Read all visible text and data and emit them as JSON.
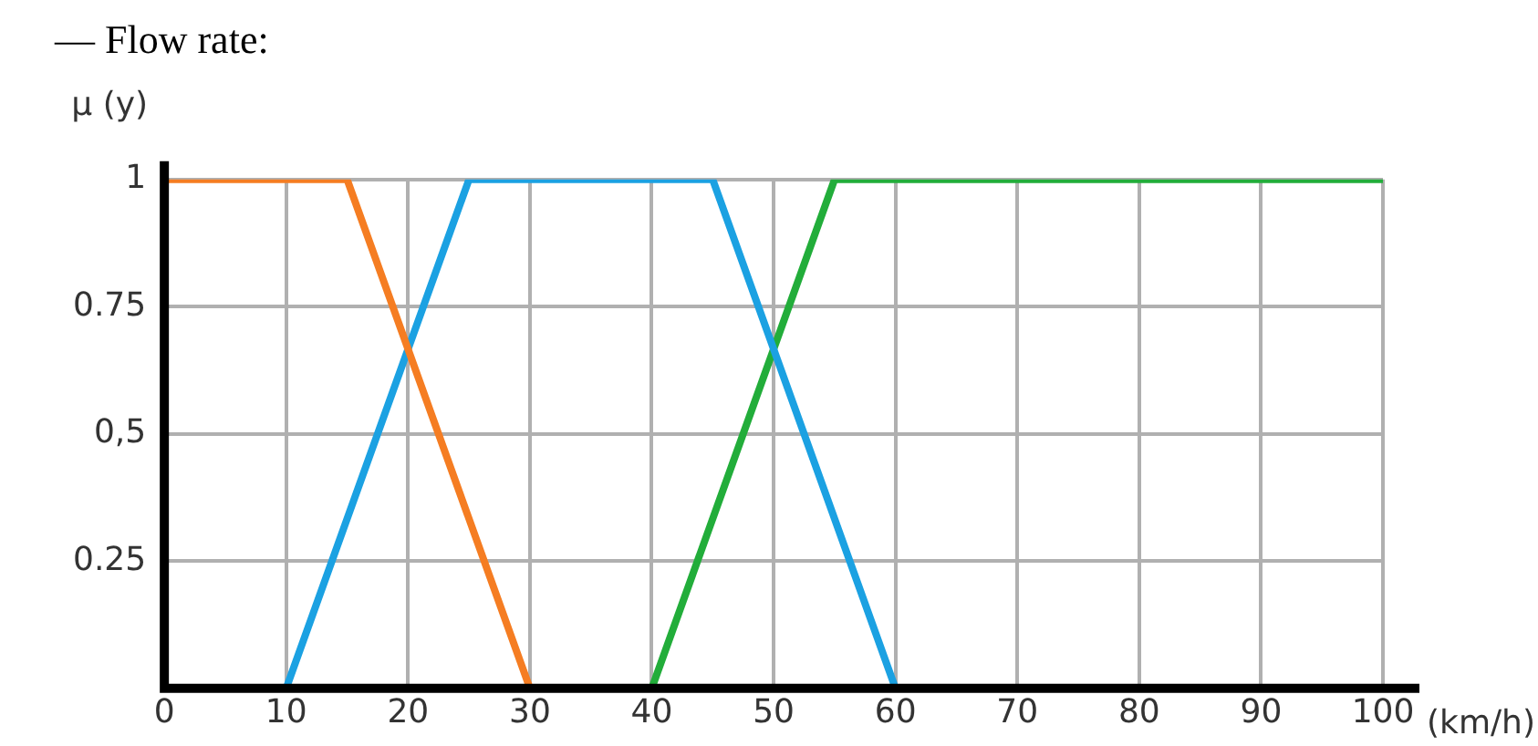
{
  "chart_data": {
    "type": "line",
    "title": "— Flow rate:",
    "ylabel": "μ (y)",
    "xlabel": "(km/h)",
    "xlim": [
      0,
      100
    ],
    "xticks": [
      0,
      10,
      20,
      30,
      40,
      50,
      60,
      70,
      80,
      90,
      100
    ],
    "ylim": [
      0,
      1
    ],
    "yticks": [
      {
        "value": 0,
        "label": null
      },
      {
        "value": 0.25,
        "label": "0.25"
      },
      {
        "value": 0.5,
        "label": "0,5"
      },
      {
        "value": 0.75,
        "label": "0.75"
      },
      1
    ],
    "grid": true,
    "legend": false,
    "marker": "none",
    "line_style": "solid",
    "series": [
      {
        "color": "#f57d22",
        "x": [
          0,
          15,
          30
        ],
        "values": [
          1,
          1,
          0
        ]
      },
      {
        "color": "#1ba1e2",
        "x": [
          10,
          25,
          45,
          60
        ],
        "values": [
          0,
          1,
          1,
          0
        ]
      },
      {
        "color": "#22ad3a",
        "x": [
          40,
          55,
          100
        ],
        "values": [
          0,
          1,
          1
        ]
      }
    ]
  }
}
